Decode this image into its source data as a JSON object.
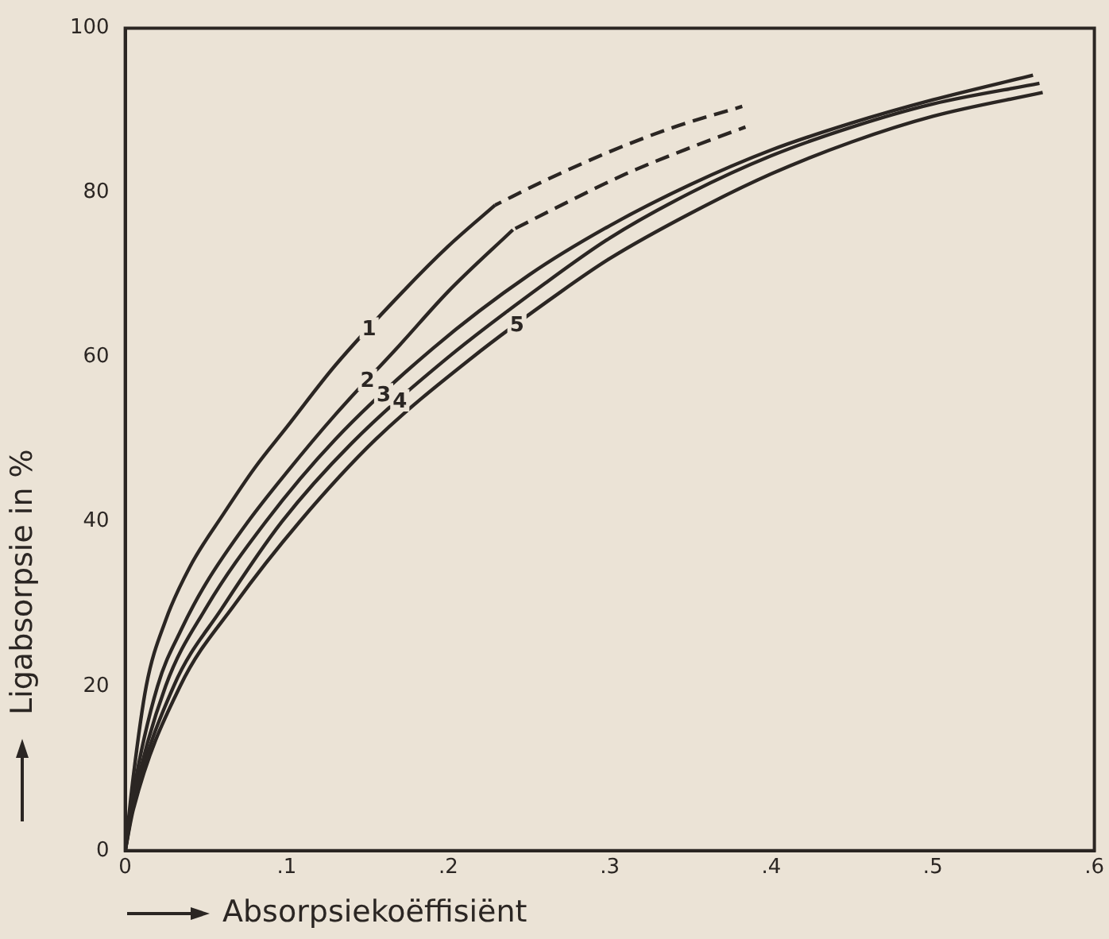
{
  "chart_data": {
    "type": "line",
    "xlabel": "Absorpsiekoëffisiënt",
    "ylabel": "Ligabsorpsie in %",
    "xlim": [
      0,
      0.6
    ],
    "ylim": [
      0,
      100
    ],
    "xticks": [
      0,
      {
        "value": 0.1,
        "label": ".1"
      },
      {
        "value": 0.2,
        "label": ".2"
      },
      {
        "value": 0.3,
        "label": ".3"
      },
      {
        "value": 0.4,
        "label": ".4"
      },
      {
        "value": 0.5,
        "label": ".5"
      },
      {
        "value": 0.6,
        "label": ".6"
      }
    ],
    "yticks": [
      0,
      20,
      40,
      60,
      80,
      100
    ],
    "grid": false,
    "legend": false,
    "marker": "none",
    "series": [
      {
        "name": "1",
        "color": "#2b2623",
        "line_style": "solid",
        "x": [
          0,
          0.005,
          0.013,
          0.025,
          0.04,
          0.061,
          0.08,
          0.1,
          0.13,
          0.172,
          0.2,
          0.229
        ],
        "values": [
          0,
          9,
          20,
          28,
          34.5,
          41,
          46.5,
          51.5,
          59,
          68,
          73.5,
          78.5
        ]
      },
      {
        "color": "#2b2623",
        "line_style": "dashed",
        "x": [
          0.229,
          0.26,
          0.3,
          0.34,
          0.382
        ],
        "values": [
          78.5,
          81.5,
          85,
          88,
          90.5
        ]
      },
      {
        "name": "2",
        "color": "#2b2623",
        "line_style": "solid",
        "x": [
          0,
          0.005,
          0.02,
          0.035,
          0.05,
          0.076,
          0.1,
          0.13,
          0.17,
          0.2,
          0.24
        ],
        "values": [
          0,
          7,
          20,
          27,
          32.5,
          40,
          46,
          53,
          61.5,
          68,
          75.5
        ]
      },
      {
        "color": "#2b2623",
        "line_style": "dashed",
        "x": [
          0.24,
          0.27,
          0.31,
          0.35,
          0.384
        ],
        "values": [
          75.5,
          78.5,
          82.3,
          85.5,
          88
        ]
      },
      {
        "name": "3",
        "color": "#2b2623",
        "line_style": "solid",
        "x": [
          0,
          0.005,
          0.025,
          0.05,
          0.087,
          0.13,
          0.19,
          0.25,
          0.3,
          0.35,
          0.4,
          0.45,
          0.5,
          0.562
        ],
        "values": [
          0,
          6,
          20,
          29.5,
          40,
          50,
          61,
          70,
          76,
          81,
          85.2,
          88.5,
          91.3,
          94.3
        ]
      },
      {
        "name": "4",
        "color": "#2b2623",
        "line_style": "solid",
        "x": [
          0,
          0.005,
          0.03,
          0.06,
          0.097,
          0.14,
          0.2,
          0.26,
          0.3,
          0.35,
          0.4,
          0.45,
          0.5,
          0.566
        ],
        "values": [
          0,
          5.5,
          20,
          29.5,
          40,
          49.5,
          60,
          69,
          74.5,
          80,
          84.5,
          88,
          90.8,
          93.3
        ]
      },
      {
        "name": "5",
        "color": "#2b2623",
        "line_style": "solid",
        "x": [
          0,
          0.005,
          0.034,
          0.068,
          0.108,
          0.155,
          0.215,
          0.27,
          0.3,
          0.35,
          0.4,
          0.45,
          0.5,
          0.568
        ],
        "values": [
          0,
          5,
          20,
          30,
          40,
          50,
          60,
          68,
          72,
          77.5,
          82.3,
          86.2,
          89.3,
          92.2
        ]
      }
    ]
  }
}
